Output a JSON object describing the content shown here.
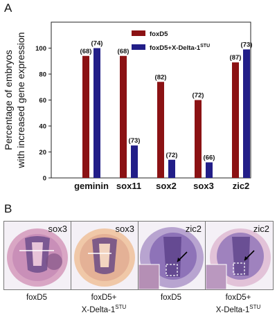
{
  "panels": {
    "a_letter": "A",
    "b_letter": "B"
  },
  "chart_data": {
    "type": "bar",
    "ylabel": "Percentage of embryos with increased gene expression",
    "ylim": [
      0,
      120
    ],
    "yticks": [
      0,
      20,
      40,
      60,
      80,
      100
    ],
    "categories": [
      "geminin",
      "sox11",
      "sox2",
      "sox3",
      "zic2"
    ],
    "series": [
      {
        "name": "foxD5",
        "color": "#8b1214",
        "values": [
          94,
          94,
          74,
          60,
          89
        ],
        "labels": [
          "(68)",
          "(68)",
          "(82)",
          "(72)",
          "(87)"
        ]
      },
      {
        "name": "foxD5+X-Delta-1",
        "name_sup": "STU",
        "color": "#221e88",
        "values": [
          100,
          25,
          14,
          12,
          99
        ],
        "labels": [
          "(74)",
          "(73)",
          "(72)",
          "(66)",
          "(73)"
        ]
      }
    ],
    "legend_position": "top-right"
  },
  "images": [
    {
      "marker": "sox3",
      "caption": "foxD5",
      "caption_line2": "",
      "caption_sup": ""
    },
    {
      "marker": "sox3",
      "caption": "foxD5+",
      "caption_line2": "X-Delta-1",
      "caption_sup": "STU"
    },
    {
      "marker": "zic2",
      "caption": "foxD5",
      "caption_line2": "",
      "caption_sup": ""
    },
    {
      "marker": "zic2",
      "caption": "foxD5+",
      "caption_line2": "X-Delta-1",
      "caption_sup": "STU"
    }
  ]
}
